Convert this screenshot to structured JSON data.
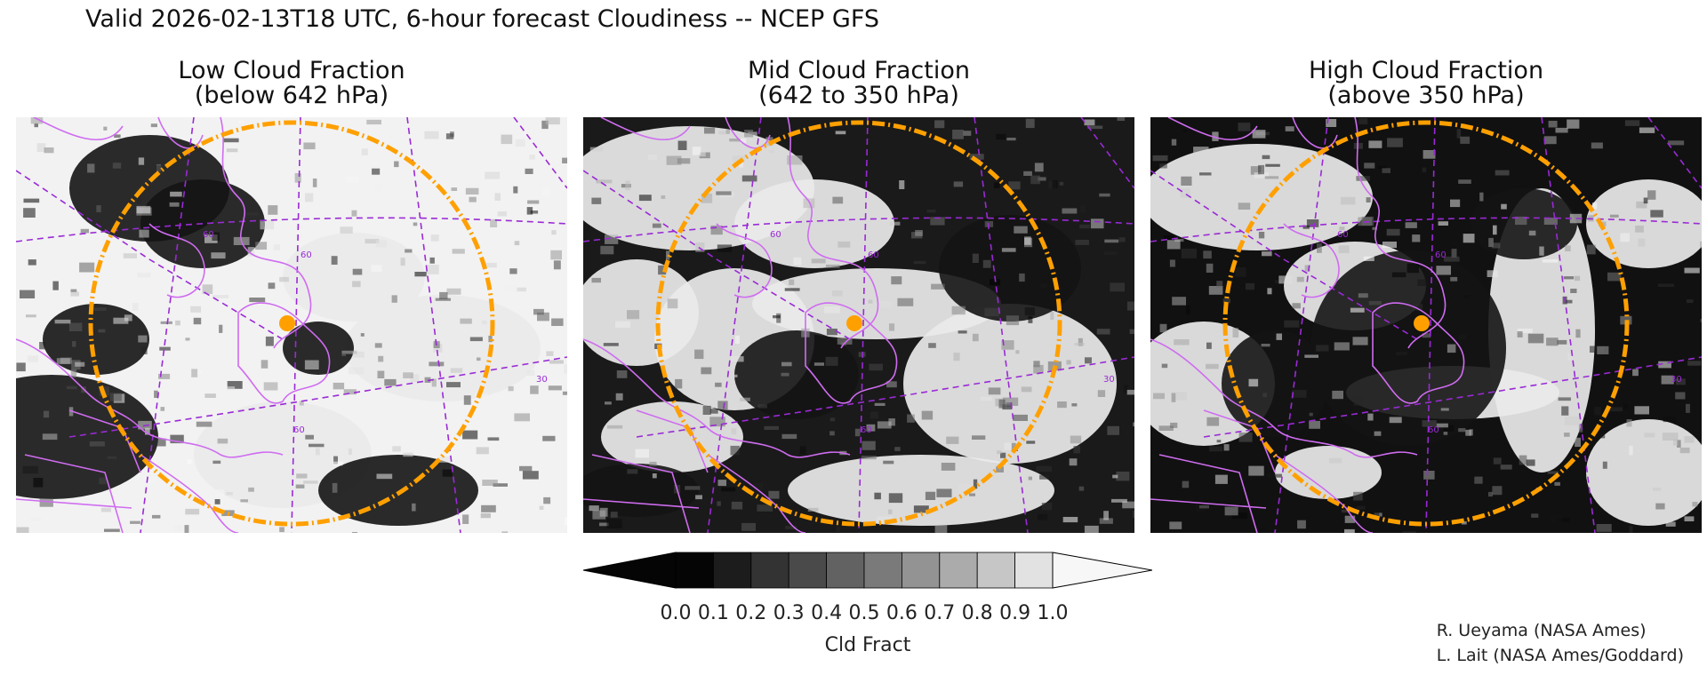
{
  "header": {
    "title": "Valid 2026-02-13T18 UTC, 6-hour forecast Cloudiness -- NCEP GFS"
  },
  "panels": [
    {
      "title_line1": "Low Cloud Fraction",
      "title_line2": "(below 642 hPa)",
      "variant": "low"
    },
    {
      "title_line1": "Mid Cloud Fraction",
      "title_line2": "(642 to 350 hPa)",
      "variant": "mid"
    },
    {
      "title_line1": "High Cloud Fraction",
      "title_line2": "(above 350 hPa)",
      "variant": "high"
    }
  ],
  "colorbar": {
    "label": "Cld Fract",
    "ticks": [
      "0.0",
      "0.1",
      "0.2",
      "0.3",
      "0.4",
      "0.5",
      "0.6",
      "0.7",
      "0.8",
      "0.9",
      "1.0"
    ],
    "colors": [
      "#050505",
      "#1c1c1c",
      "#333333",
      "#4a4a4a",
      "#626262",
      "#7a7a7a",
      "#939393",
      "#ababab",
      "#c6c6c6",
      "#e2e2e2",
      "#f7f7f7"
    ]
  },
  "map_style": {
    "boundary_color": "#cf6cf0",
    "grid_color": "#9a2ad6",
    "range_ring_color": "#ffa000",
    "marker_color": "#ffa000"
  },
  "map_labels": [
    "60",
    "60",
    "60",
    "30"
  ],
  "credits": {
    "line1": "R. Ueyama (NASA Ames)",
    "line2": "L. Lait (NASA Ames/Goddard)"
  }
}
